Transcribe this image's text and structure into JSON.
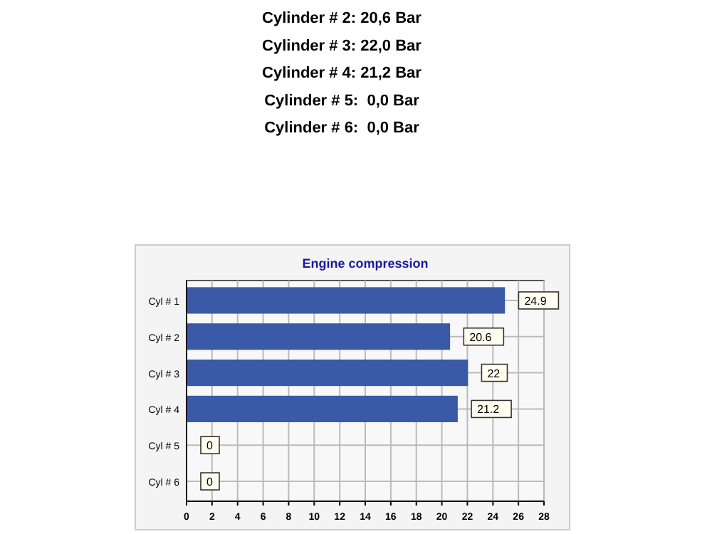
{
  "chart_data": {
    "type": "bar",
    "orientation": "horizontal",
    "title": "Engine compression",
    "categories": [
      "Cyl # 1",
      "Cyl # 2",
      "Cyl # 3",
      "Cyl # 4",
      "Cyl # 5",
      "Cyl # 6"
    ],
    "values": [
      24.9,
      20.6,
      22,
      21.2,
      0,
      0
    ],
    "color": "#3a5aa8",
    "xlim": [
      0,
      28
    ],
    "xticks": [
      0,
      2,
      4,
      6,
      8,
      10,
      12,
      14,
      16,
      18,
      20,
      22,
      24,
      26,
      28
    ],
    "grid": true,
    "data_labels": true,
    "annotations": [
      "Cylinder # 2: 20,6 Bar",
      "Cylinder # 3: 22,0 Bar",
      "Cylinder # 4: 21,2 Bar",
      "Cylinder # 5:  0,0 Bar",
      "Cylinder # 6:  0,0 Bar"
    ]
  }
}
